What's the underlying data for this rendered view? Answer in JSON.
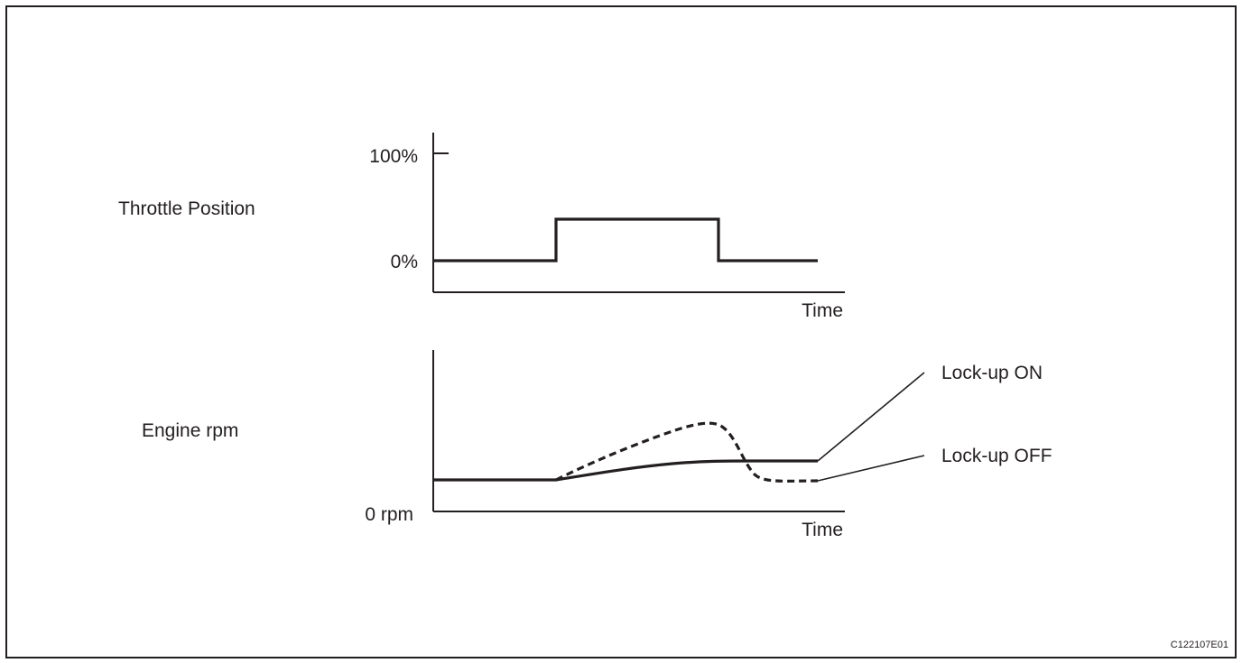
{
  "figure": {
    "throttle": {
      "row_label": "Throttle Position",
      "tick_high": "100%",
      "tick_low": "0%",
      "x_label": "Time"
    },
    "rpm": {
      "row_label": "Engine rpm",
      "tick_low": "0 rpm",
      "x_label": "Time",
      "callout_on": "Lock-up ON",
      "callout_off": "Lock-up OFF"
    },
    "figure_code": "C122107E01"
  },
  "colors": {
    "ink": "#231f20",
    "background": "#ffffff"
  }
}
